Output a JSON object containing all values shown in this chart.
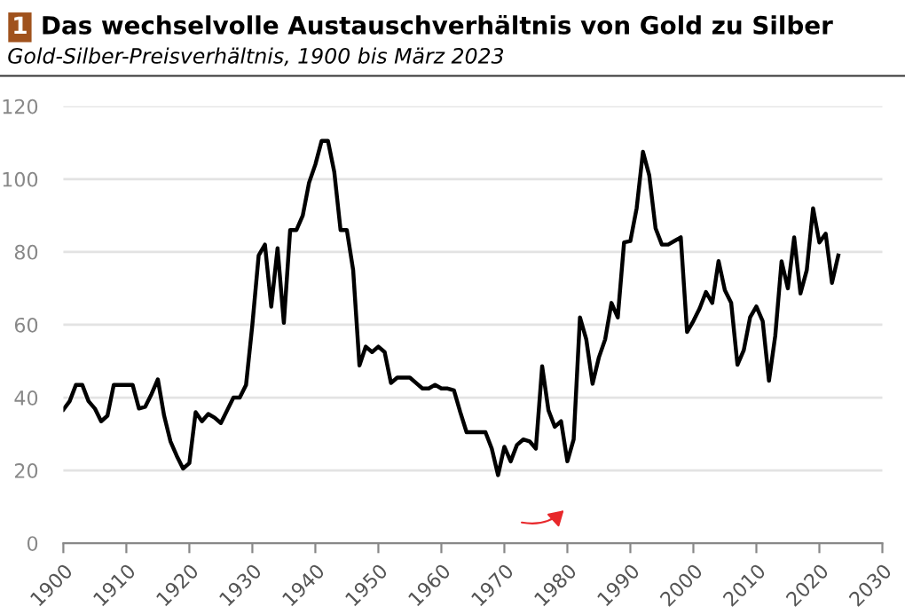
{
  "chart_data": {
    "type": "line",
    "title": "Das wechselvolle Austauschverhältnis von Gold zu Silber",
    "subtitle": "Gold-Silber-Preisverhältnis, 1900 bis März 2023",
    "annotations": [
      "1"
    ],
    "x": [
      1900,
      1901,
      1902,
      1903,
      1904,
      1905,
      1906,
      1907,
      1908,
      1909,
      1910,
      1911,
      1912,
      1913,
      1914,
      1915,
      1916,
      1917,
      1918,
      1919,
      1920,
      1921,
      1922,
      1923,
      1924,
      1925,
      1926,
      1927,
      1928,
      1929,
      1930,
      1931,
      1932,
      1933,
      1934,
      1935,
      1936,
      1937,
      1938,
      1939,
      1940,
      1941,
      1942,
      1943,
      1944,
      1945,
      1946,
      1947,
      1948,
      1949,
      1950,
      1951,
      1952,
      1953,
      1954,
      1955,
      1956,
      1957,
      1958,
      1959,
      1960,
      1961,
      1962,
      1963,
      1964,
      1965,
      1966,
      1967,
      1968,
      1969,
      1970,
      1971,
      1972,
      1973,
      1974,
      1975,
      1976,
      1977,
      1978,
      1979,
      1980,
      1981,
      1982,
      1983,
      1984,
      1985,
      1986,
      1987,
      1988,
      1989,
      1990,
      1991,
      1992,
      1993,
      1994,
      1995,
      1996,
      1997,
      1998,
      1999,
      2000,
      2001,
      2002,
      2003,
      2004,
      2005,
      2006,
      2007,
      2008,
      2009,
      2010,
      2011,
      2012,
      2013,
      2014,
      2015,
      2016,
      2017,
      2018,
      2019,
      2020,
      2021,
      2022,
      2023
    ],
    "series": [
      {
        "color": "#000000",
        "values": [
          36.7,
          39,
          43.5,
          43.5,
          39,
          37,
          33.5,
          35,
          43.5,
          43.5,
          43.5,
          43.5,
          37,
          37.5,
          41,
          45,
          35,
          28,
          24,
          20.5,
          22,
          36,
          33.5,
          35.5,
          34.5,
          33,
          36.5,
          40,
          40,
          43.5,
          60,
          79,
          82,
          65,
          81,
          60.5,
          86,
          86,
          90,
          99,
          104,
          110.5,
          110.5,
          102,
          86,
          86,
          75,
          48.8,
          54,
          52.5,
          54,
          52.5,
          44,
          45.5,
          45.5,
          45.5,
          44,
          42.5,
          42.5,
          43.5,
          42.5,
          42.5,
          42,
          36,
          30.5,
          30.5,
          30.5,
          30.5,
          26,
          18.7,
          26.5,
          22.5,
          27,
          28.5,
          28,
          26,
          48.6,
          36.5,
          32,
          33.5,
          22.5,
          28.5,
          62,
          56,
          43.8,
          51,
          56,
          66,
          62,
          82.6,
          83,
          92,
          107.5,
          101,
          86.5,
          82,
          82,
          83,
          84,
          58,
          61,
          64.5,
          69,
          66,
          77.5,
          69.5,
          66,
          49,
          53,
          62,
          65,
          61,
          44.6,
          57,
          77.4,
          70,
          84,
          68.6,
          75,
          92,
          82.6,
          85,
          71.5,
          79
        ]
      }
    ],
    "xlim": [
      1900,
      2030
    ],
    "xticks": [
      1900,
      1910,
      1920,
      1930,
      1940,
      1950,
      1960,
      1970,
      1980,
      1990,
      2000,
      2010,
      2020,
      2030
    ],
    "ylim": [
      0,
      120
    ],
    "yticks": [
      0,
      20,
      40,
      60,
      80,
      100,
      120
    ],
    "grid": "y",
    "marker": "none",
    "line_style": "solid"
  }
}
